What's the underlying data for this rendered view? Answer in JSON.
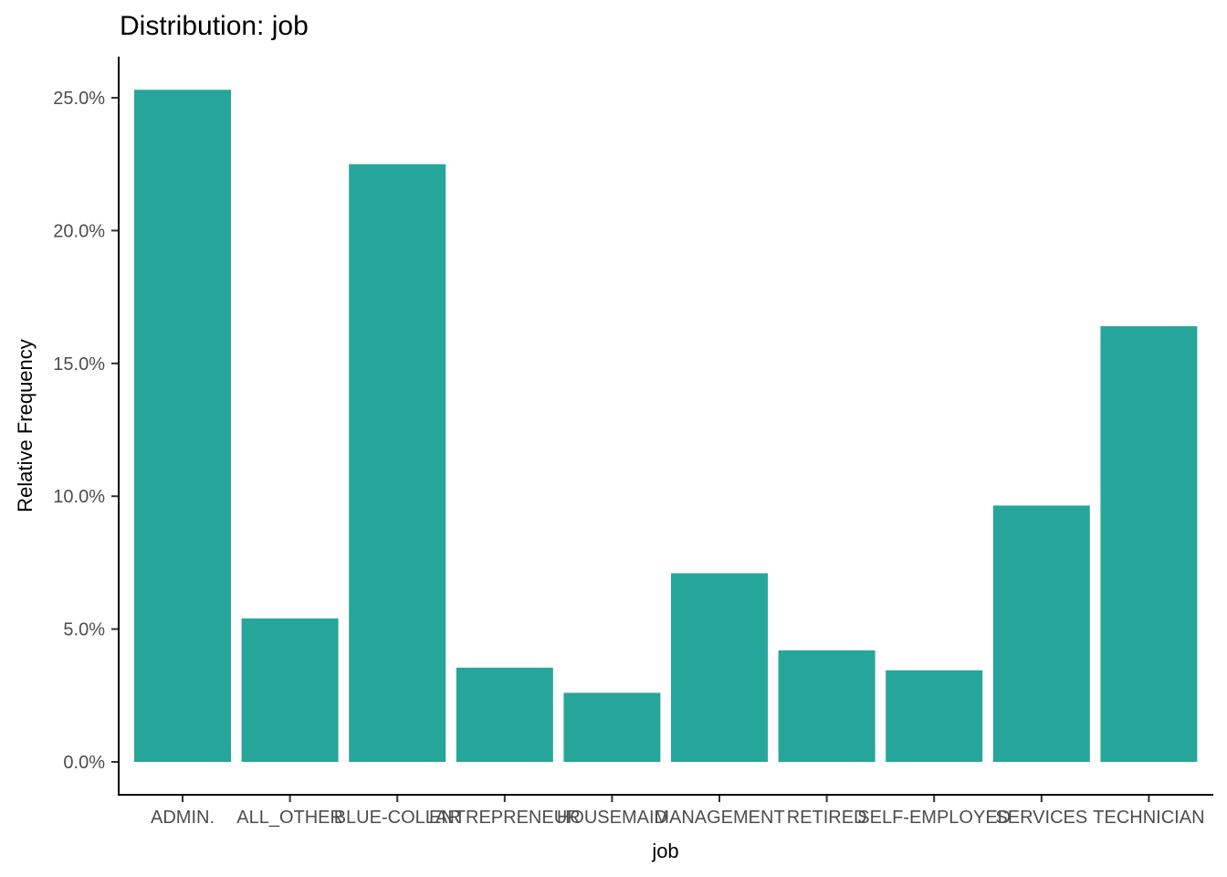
{
  "chart_data": {
    "type": "bar",
    "title": "Distribution: job",
    "xlabel": "job",
    "ylabel": "Relative Frequency",
    "categories": [
      "ADMIN.",
      "ALL_OTHER",
      "BLUE-COLLAR",
      "ENTREPRENEUR",
      "HOUSEMAID",
      "MANAGEMENT",
      "RETIRED",
      "SELF-EMPLOYED",
      "SERVICES",
      "TECHNICIAN"
    ],
    "values": [
      0.253,
      0.054,
      0.225,
      0.0355,
      0.026,
      0.071,
      0.042,
      0.0345,
      0.0965,
      0.164
    ],
    "ylim": [
      0,
      0.25
    ],
    "y_ticks": [
      "0.0%",
      "5.0%",
      "10.0%",
      "15.0%",
      "20.0%",
      "25.0%"
    ],
    "grid": false,
    "legend": "none",
    "bar_color": "#26A69A"
  }
}
